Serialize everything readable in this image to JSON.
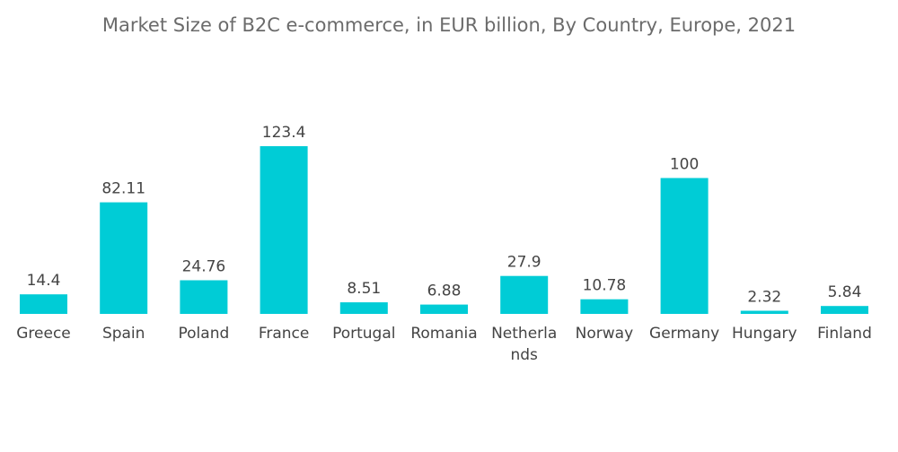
{
  "chart_data": {
    "type": "bar",
    "title": "Market Size of B2C e-commerce, in EUR billion, By Country, Europe, 2021",
    "xlabel": "",
    "ylabel": "",
    "categories": [
      "Greece",
      "Spain",
      "Poland",
      "France",
      "Portugal",
      "Romania",
      "Netherlands",
      "Norway",
      "Germany",
      "Hungary",
      "Finland"
    ],
    "category_label_lines": [
      [
        "Greece"
      ],
      [
        "Spain"
      ],
      [
        "Poland"
      ],
      [
        "France"
      ],
      [
        "Portugal"
      ],
      [
        "Romania"
      ],
      [
        "Netherla",
        "nds"
      ],
      [
        "Norway"
      ],
      [
        "Germany"
      ],
      [
        "Hungary"
      ],
      [
        "Finland"
      ]
    ],
    "values": [
      14.4,
      82.11,
      24.76,
      123.4,
      8.51,
      6.88,
      27.9,
      10.78,
      100,
      2.32,
      5.84
    ],
    "value_labels": [
      "14.4",
      "82.11",
      "24.76",
      "123.4",
      "8.51",
      "6.88",
      "27.9",
      "10.78",
      "100",
      "2.32",
      "5.84"
    ],
    "bar_color": "#00ccd6",
    "ylim": [
      0,
      123.4
    ],
    "grid": false,
    "legend": "none"
  }
}
